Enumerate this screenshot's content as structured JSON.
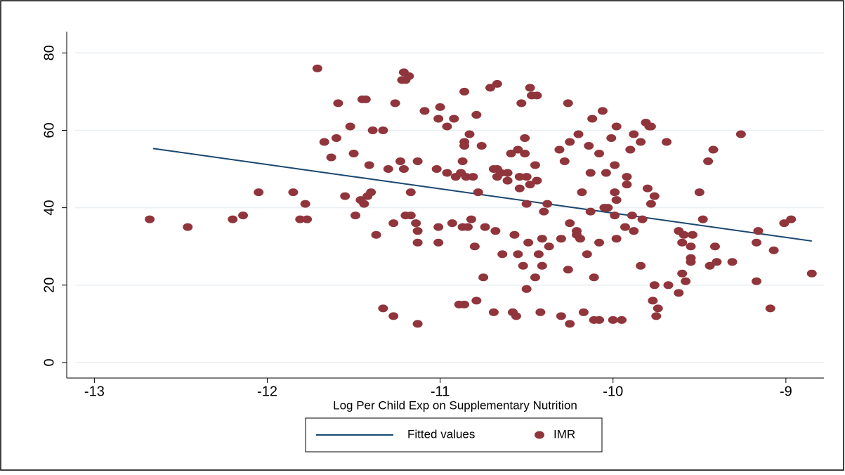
{
  "chart_data": {
    "type": "scatter",
    "x_label": "Log Per Child Exp on Supplementary Nutrition",
    "xlim": [
      -13.16,
      -8.78
    ],
    "xticks": [
      -13,
      -12,
      -11,
      -10,
      -9
    ],
    "ylim": [
      -4,
      85.5
    ],
    "yticks": [
      0,
      20,
      40,
      60,
      80
    ],
    "grid": true,
    "legend": "bottom",
    "series": [
      {
        "name": "Fitted values",
        "type": "line",
        "color": "#1a476f",
        "x": [
          -12.66,
          -8.85
        ],
        "values": [
          55.3,
          31.4
        ]
      },
      {
        "name": "IMR",
        "type": "scatter",
        "color": "#90353b",
        "x": [
          -12.68,
          -12.46,
          -12.2,
          -12.14,
          -12.05,
          -11.85,
          -11.81,
          -11.78,
          -11.77,
          -11.71,
          -11.67,
          -11.63,
          -11.6,
          -11.59,
          -11.55,
          -11.52,
          -11.5,
          -11.49,
          -11.46,
          -11.45,
          -11.43,
          -11.44,
          -11.42,
          -11.41,
          -11.4,
          -11.39,
          -11.37,
          -11.33,
          -11.33,
          -11.3,
          -11.27,
          -11.27,
          -11.26,
          -11.23,
          -11.21,
          -11.22,
          -11.21,
          -11.2,
          -11.18,
          -11.2,
          -11.17,
          -11.17,
          -11.14,
          -11.13,
          -11.13,
          -11.13,
          -11.13,
          -11.09,
          -11.02,
          -11.01,
          -11.01,
          -11.01,
          -11.0,
          -10.96,
          -10.96,
          -10.93,
          -10.92,
          -10.91,
          -10.89,
          -10.88,
          -10.87,
          -10.86,
          -10.86,
          -10.86,
          -10.86,
          -10.85,
          -10.87,
          -10.84,
          -10.83,
          -10.82,
          -10.81,
          -10.8,
          -10.79,
          -10.79,
          -10.78,
          -10.76,
          -10.75,
          -10.74,
          -10.71,
          -10.69,
          -10.68,
          -10.69,
          -10.67,
          -10.67,
          -10.67,
          -10.65,
          -10.64,
          -10.61,
          -10.61,
          -10.59,
          -10.58,
          -10.57,
          -10.56,
          -10.55,
          -10.55,
          -10.54,
          -10.54,
          -10.53,
          -10.52,
          -10.51,
          -10.51,
          -10.5,
          -10.5,
          -10.5,
          -10.49,
          -10.48,
          -10.48,
          -10.47,
          -10.45,
          -10.44,
          -10.44,
          -10.45,
          -10.43,
          -10.41,
          -10.41,
          -10.42,
          -10.4,
          -10.38,
          -10.37,
          -10.31,
          -10.3,
          -10.3,
          -10.28,
          -10.26,
          -10.26,
          -10.25,
          -10.25,
          -10.25,
          -10.21,
          -10.21,
          -10.2,
          -10.19,
          -10.18,
          -10.17,
          -10.15,
          -10.14,
          -10.13,
          -10.13,
          -10.12,
          -10.11,
          -10.11,
          -10.08,
          -10.08,
          -10.08,
          -10.06,
          -10.05,
          -10.04,
          -10.03,
          -10.01,
          -10.0,
          -9.99,
          -9.99,
          -9.99,
          -9.98,
          -9.98,
          -9.98,
          -9.95,
          -9.93,
          -9.92,
          -9.92,
          -9.9,
          -9.89,
          -9.88,
          -9.88,
          -9.84,
          -9.84,
          -9.83,
          -9.81,
          -9.8,
          -9.79,
          -9.78,
          -9.78,
          -9.77,
          -9.76,
          -9.76,
          -9.74,
          -9.75,
          -9.69,
          -9.68,
          -9.62,
          -9.62,
          -9.6,
          -9.6,
          -9.59,
          -9.58,
          -9.55,
          -9.55,
          -9.55,
          -9.54,
          -9.5,
          -9.48,
          -9.45,
          -9.44,
          -9.42,
          -9.41,
          -9.4,
          -9.31,
          -9.26,
          -9.17,
          -9.17,
          -9.16,
          -9.09,
          -9.07,
          -9.01,
          -8.97,
          -8.85
        ],
        "values": [
          37,
          35,
          37,
          38,
          44,
          44,
          37,
          41,
          37,
          76,
          57,
          53,
          58,
          67,
          43,
          61,
          54,
          38,
          42,
          68,
          68,
          41,
          43,
          51,
          44,
          60,
          33,
          60,
          14,
          50,
          36,
          12,
          67,
          52,
          75,
          73,
          50,
          73,
          74,
          38,
          44,
          38,
          36,
          52,
          34,
          31,
          10,
          65,
          50,
          35,
          31,
          63,
          66,
          61,
          49,
          36,
          63,
          48,
          15,
          49,
          52,
          70,
          15,
          57,
          56,
          48,
          35,
          35,
          59,
          37,
          48,
          30,
          16,
          64,
          44,
          56,
          22,
          35,
          71,
          13,
          34,
          50,
          50,
          72,
          48,
          49,
          28,
          47,
          49,
          54,
          13,
          33,
          12,
          28,
          55,
          48,
          45,
          67,
          25,
          58,
          54,
          48,
          41,
          19,
          31,
          71,
          46,
          69,
          51,
          69,
          47,
          22,
          28,
          32,
          25,
          13,
          39,
          41,
          30,
          55,
          32,
          12,
          52,
          67,
          24,
          36,
          10,
          57,
          34,
          33,
          59,
          32,
          44,
          13,
          28,
          56,
          39,
          49,
          63,
          22,
          11,
          11,
          54,
          31,
          65,
          40,
          49,
          40,
          58,
          11,
          44,
          51,
          38,
          61,
          32,
          42,
          11,
          35,
          48,
          46,
          55,
          38,
          59,
          34,
          25,
          57,
          37,
          62,
          45,
          61,
          41,
          61,
          16,
          20,
          43,
          14,
          12,
          57,
          20,
          18,
          34,
          31,
          23,
          33,
          21,
          30,
          27,
          26,
          33,
          44,
          37,
          52,
          25,
          55,
          30,
          26,
          26,
          59,
          21,
          31,
          34,
          14,
          29,
          36,
          37,
          23
        ]
      }
    ]
  }
}
